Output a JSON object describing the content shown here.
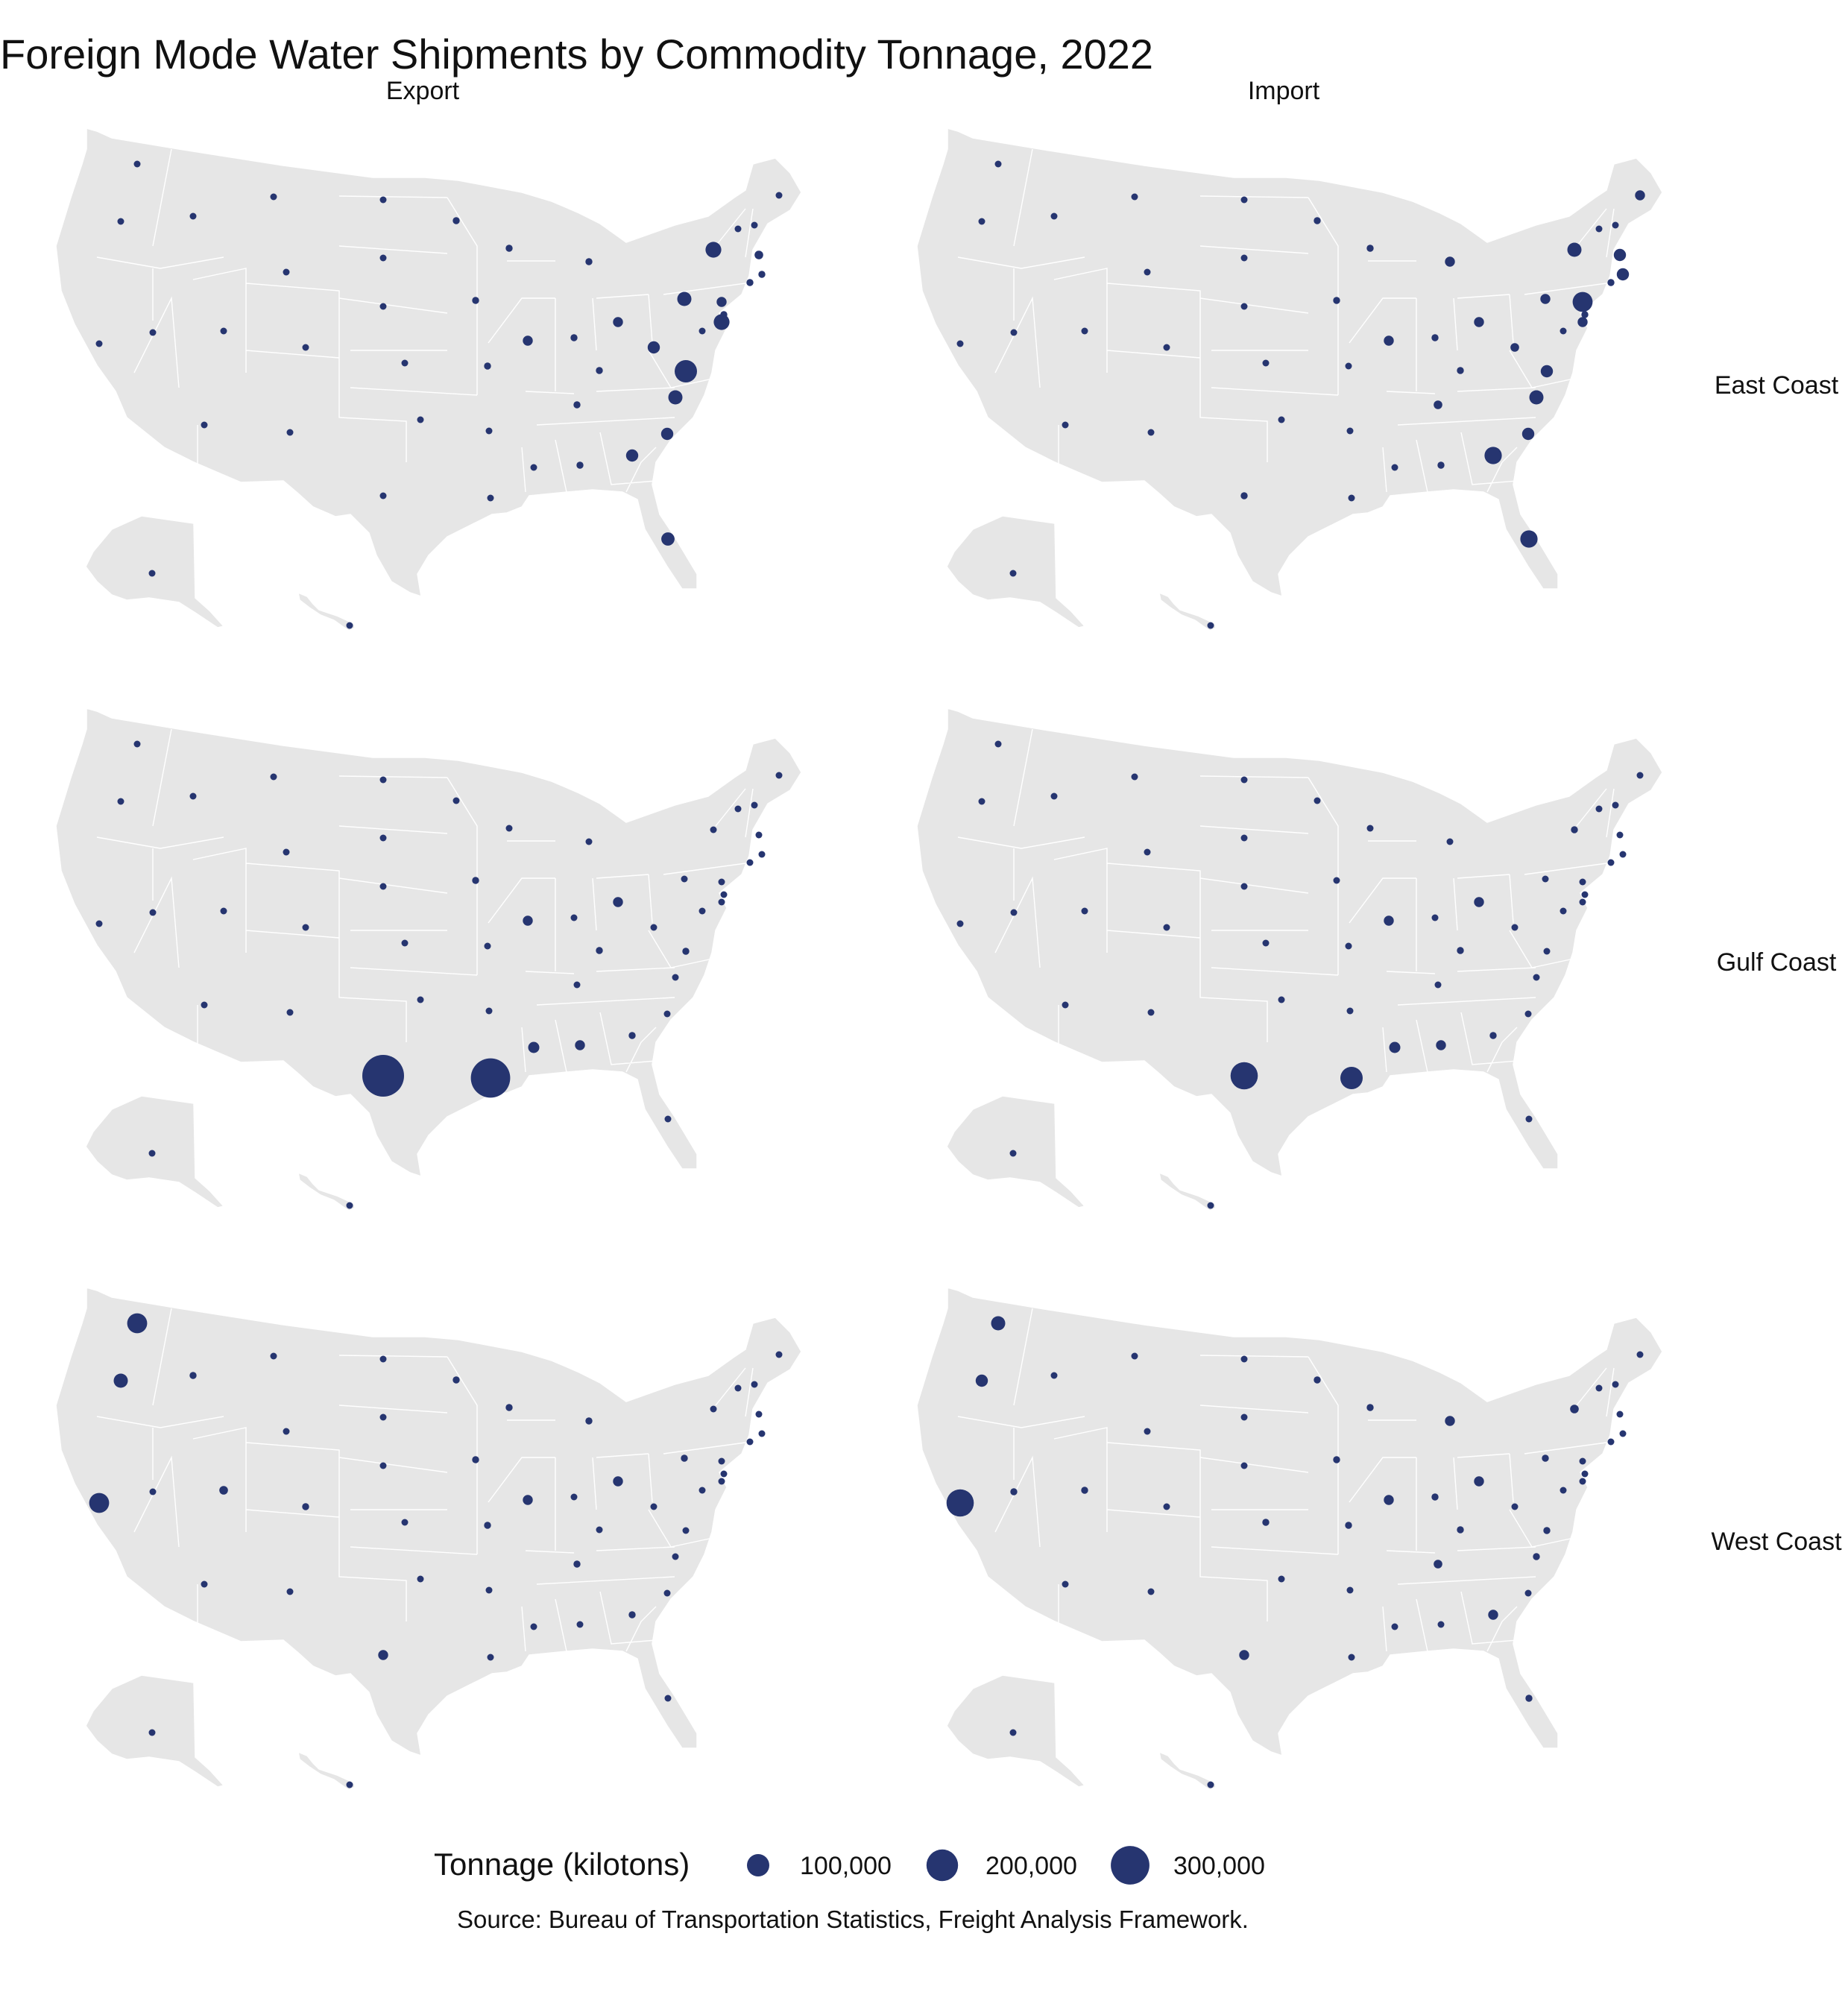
{
  "title": "Foreign Mode Water Shipments by Commodity Tonnage, 2022",
  "columns": [
    "Export",
    "Import"
  ],
  "rows": [
    "East Coast",
    "Gulf Coast",
    "West Coast"
  ],
  "legend": {
    "title": "Tonnage (kilotons)",
    "items": [
      {
        "value": 100000,
        "label": "100,000"
      },
      {
        "value": 200000,
        "label": "200,000"
      },
      {
        "value": 300000,
        "label": "300,000"
      }
    ]
  },
  "caption": "Source: Bureau of Transportation Statistics, Freight Analysis Framework.",
  "colors": {
    "point": "#263570",
    "land": "#e6e6e6",
    "border": "#ffffff"
  },
  "chart_data": {
    "type": "scatter",
    "kind": "proportional-symbol map",
    "value_unit": "kilotons",
    "state_order": [
      "WA",
      "OR",
      "CA",
      "ID",
      "NV",
      "MT",
      "WY",
      "UT",
      "AZ",
      "CO",
      "NM",
      "ND",
      "SD",
      "NE",
      "KS",
      "OK",
      "TX",
      "MN",
      "IA",
      "MO",
      "AR",
      "LA",
      "WI",
      "IL",
      "MS",
      "MI",
      "IN",
      "OH",
      "KY",
      "TN",
      "AL",
      "GA",
      "FL",
      "SC",
      "NC",
      "VA",
      "WV",
      "DC",
      "MD",
      "DE",
      "PA",
      "NJ",
      "NY",
      "CT",
      "RI",
      "MA",
      "VT",
      "NH",
      "ME",
      "AK",
      "HI"
    ],
    "panels": [
      {
        "row": "East Coast",
        "column": "Export",
        "tonnage": [
          4000,
          4000,
          4000,
          3000,
          3000,
          3000,
          3000,
          3000,
          3000,
          3000,
          3000,
          3000,
          3000,
          3000,
          4000,
          3000,
          8000,
          10000,
          10000,
          10000,
          3000,
          4000,
          10000,
          20000,
          6000,
          10000,
          10000,
          20000,
          10000,
          10000,
          10000,
          30000,
          35000,
          30000,
          40000,
          100000,
          30000,
          3000,
          50000,
          10000,
          40000,
          20000,
          50000,
          10000,
          10000,
          15000,
          3000,
          5000,
          8000,
          3000,
          3000
        ]
      },
      {
        "row": "East Coast",
        "column": "Import",
        "tonnage": [
          4000,
          4000,
          8000,
          3000,
          3000,
          3000,
          3000,
          3000,
          3000,
          3000,
          3000,
          3000,
          3000,
          3000,
          3000,
          3000,
          10000,
          10000,
          10000,
          8000,
          3000,
          4000,
          10000,
          20000,
          6000,
          20000,
          10000,
          20000,
          10000,
          15000,
          10000,
          60000,
          60000,
          30000,
          40000,
          30000,
          15000,
          3000,
          20000,
          10000,
          20000,
          80000,
          40000,
          10000,
          30000,
          30000,
          3000,
          5000,
          20000,
          3000,
          3000
        ]
      },
      {
        "row": "Gulf Coast",
        "column": "Export",
        "tonnage": [
          4000,
          4000,
          4000,
          3000,
          3000,
          3000,
          3000,
          3000,
          3000,
          3000,
          3000,
          3000,
          3000,
          3000,
          4000,
          3000,
          350000,
          4000,
          10000,
          4000,
          3000,
          310000,
          6000,
          20000,
          25000,
          6000,
          8000,
          20000,
          10000,
          4000,
          20000,
          10000,
          8000,
          6000,
          6000,
          10000,
          6000,
          3000,
          6000,
          3000,
          8000,
          3000,
          6000,
          3000,
          3000,
          3000,
          3000,
          3000,
          3000,
          3000,
          3000
        ]
      },
      {
        "row": "Gulf Coast",
        "column": "Import",
        "tonnage": [
          4000,
          4000,
          4000,
          3000,
          3000,
          3000,
          3000,
          3000,
          3000,
          3000,
          3000,
          3000,
          3000,
          3000,
          4000,
          3000,
          150000,
          8000,
          4000,
          4000,
          3000,
          100000,
          6000,
          20000,
          25000,
          6000,
          8000,
          20000,
          10000,
          4000,
          20000,
          10000,
          8000,
          6000,
          6000,
          6000,
          6000,
          3000,
          6000,
          3000,
          8000,
          3000,
          10000,
          3000,
          3000,
          4000,
          3000,
          3000,
          3000,
          3000,
          3000
        ]
      },
      {
        "row": "West Coast",
        "column": "Export",
        "tonnage": [
          80000,
          40000,
          80000,
          10000,
          8000,
          3000,
          3000,
          15000,
          8000,
          10000,
          3000,
          3000,
          3000,
          8000,
          8000,
          6000,
          20000,
          10000,
          10000,
          10000,
          8000,
          6000,
          10000,
          20000,
          4000,
          10000,
          8000,
          20000,
          8000,
          10000,
          4000,
          10000,
          8000,
          8000,
          6000,
          8000,
          4000,
          3000,
          6000,
          3000,
          10000,
          4000,
          6000,
          3000,
          3000,
          6000,
          3000,
          3000,
          3000,
          3000,
          3000
        ]
      },
      {
        "row": "West Coast",
        "column": "Import",
        "tonnage": [
          40000,
          30000,
          150000,
          8000,
          10000,
          3000,
          3000,
          10000,
          8000,
          8000,
          3000,
          3000,
          3000,
          8000,
          10000,
          6000,
          20000,
          10000,
          10000,
          10000,
          8000,
          4000,
          10000,
          20000,
          6000,
          20000,
          10000,
          20000,
          10000,
          15000,
          6000,
          20000,
          10000,
          6000,
          10000,
          10000,
          6000,
          3000,
          6000,
          3000,
          10000,
          6000,
          15000,
          3000,
          3000,
          6000,
          3000,
          3000,
          4000,
          3000,
          3000
        ]
      }
    ]
  }
}
